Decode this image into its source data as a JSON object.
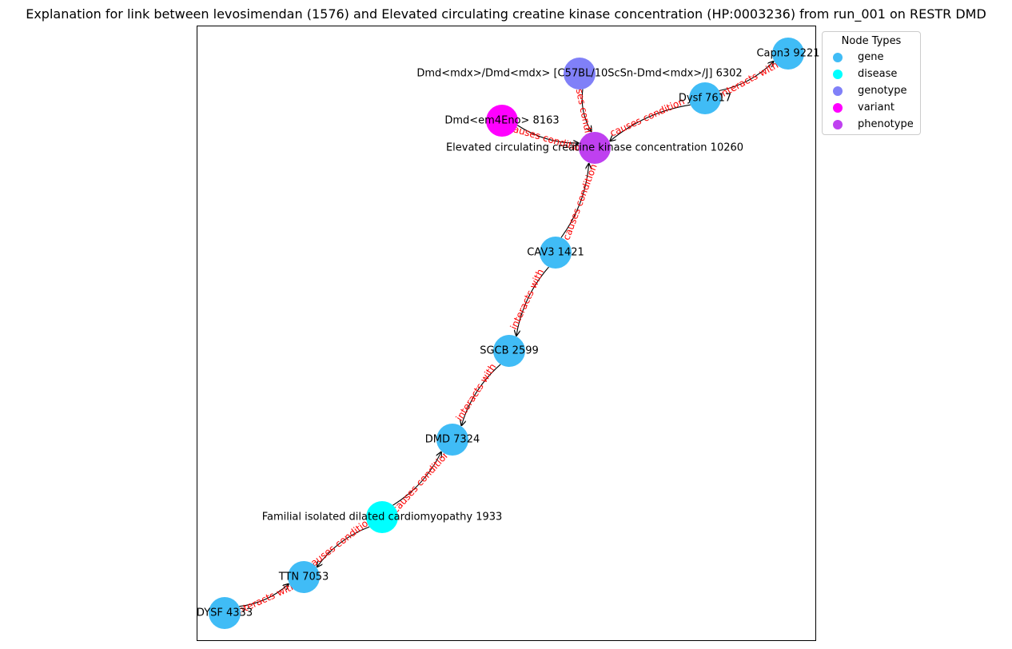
{
  "title": "Explanation for link between levosimendan (1576) and Elevated circulating creatine kinase concentration (HP:0003236) from run_001 on RESTR DMD",
  "legend": {
    "title": "Node Types",
    "items": [
      {
        "label": "gene",
        "color": "#40bcf6"
      },
      {
        "label": "disease",
        "color": "#00ffff"
      },
      {
        "label": "genotype",
        "color": "#8080f8"
      },
      {
        "label": "variant",
        "color": "#ff00ff"
      },
      {
        "label": "phenotype",
        "color": "#bf40f0"
      }
    ]
  },
  "nodes": [
    {
      "id": "capn3",
      "label": "Capn3 9221",
      "type": "gene"
    },
    {
      "id": "dmdmdx",
      "label": "Dmd<mdx>/Dmd<mdx> [C57BL/10ScSn-Dmd<mdx>/J] 6302",
      "type": "genotype"
    },
    {
      "id": "dysf7617",
      "label": "Dysf 7617",
      "type": "gene"
    },
    {
      "id": "dmdem4",
      "label": "Dmd<em4Eno> 8163",
      "type": "variant"
    },
    {
      "id": "eck",
      "label": "Elevated circulating creatine kinase concentration 10260",
      "type": "phenotype"
    },
    {
      "id": "cav3",
      "label": "CAV3 1421",
      "type": "gene"
    },
    {
      "id": "sgcb",
      "label": "SGCB 2599",
      "type": "gene"
    },
    {
      "id": "dmd7324",
      "label": "DMD 7324",
      "type": "gene"
    },
    {
      "id": "fidc",
      "label": "Familial isolated dilated cardiomyopathy 1933",
      "type": "disease"
    },
    {
      "id": "ttn",
      "label": "TTN 7053",
      "type": "gene"
    },
    {
      "id": "dysf4333",
      "label": "DYSF 4333",
      "type": "gene"
    }
  ],
  "edges": [
    {
      "source": "dysf7617",
      "target": "capn3",
      "label": "interacts with"
    },
    {
      "source": "dysf7617",
      "target": "eck",
      "label": "causes condition"
    },
    {
      "source": "dmdmdx",
      "target": "eck",
      "label": "causes condition"
    },
    {
      "source": "dmdem4",
      "target": "eck",
      "label": "causes condition"
    },
    {
      "source": "cav3",
      "target": "eck",
      "label": "causes condition"
    },
    {
      "source": "cav3",
      "target": "sgcb",
      "label": "interacts with"
    },
    {
      "source": "sgcb",
      "target": "dmd7324",
      "label": "interacts with"
    },
    {
      "source": "fidc",
      "target": "dmd7324",
      "label": "causes condition"
    },
    {
      "source": "fidc",
      "target": "ttn",
      "label": "causes condition"
    },
    {
      "source": "dysf4333",
      "target": "ttn",
      "label": "interacts with"
    }
  ]
}
